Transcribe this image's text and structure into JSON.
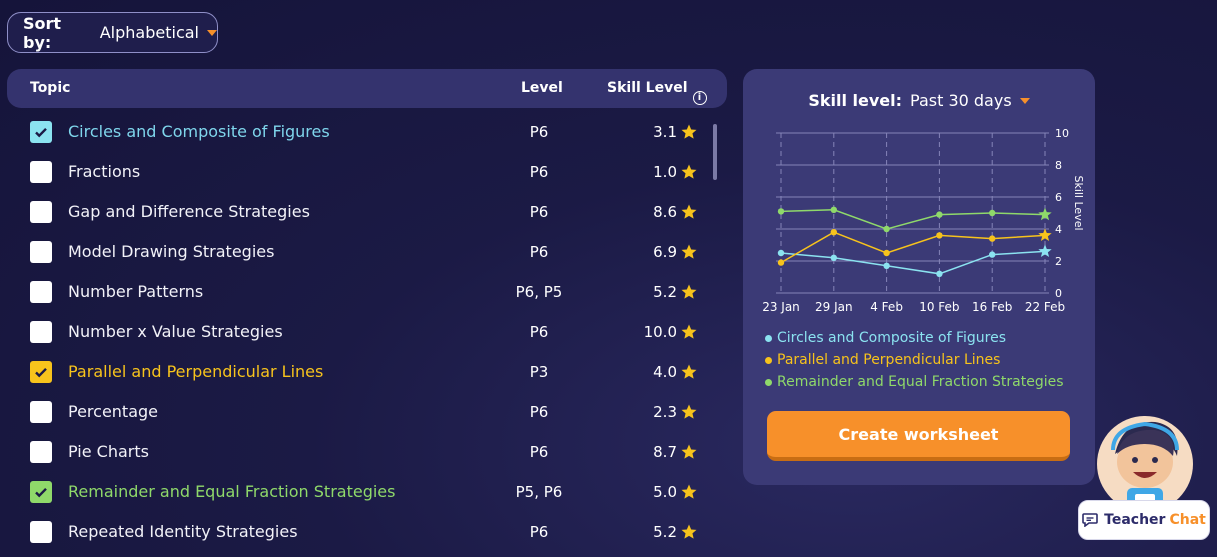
{
  "sort": {
    "label": "Sort by:",
    "value": "Alphabetical"
  },
  "table": {
    "headers": {
      "topic": "Topic",
      "level": "Level",
      "skill": "Skill Level"
    },
    "rows": [
      {
        "topic": "Circles and Composite of Figures",
        "level": "P6",
        "skill": "3.1",
        "checked": true,
        "checkColor": "#8be3f0",
        "textColor": "#7fd6ec"
      },
      {
        "topic": "Fractions",
        "level": "P6",
        "skill": "1.0",
        "checked": false
      },
      {
        "topic": "Gap and Difference Strategies",
        "level": "P6",
        "skill": "8.6",
        "checked": false
      },
      {
        "topic": "Model Drawing Strategies",
        "level": "P6",
        "skill": "6.9",
        "checked": false
      },
      {
        "topic": "Number Patterns",
        "level": "P6, P5",
        "skill": "5.2",
        "checked": false
      },
      {
        "topic": "Number x Value Strategies",
        "level": "P6",
        "skill": "10.0",
        "checked": false
      },
      {
        "topic": "Parallel and Perpendicular Lines",
        "level": "P3",
        "skill": "4.0",
        "checked": true,
        "checkColor": "#f7c31c",
        "textColor": "#f7c31c"
      },
      {
        "topic": "Percentage",
        "level": "P6",
        "skill": "2.3",
        "checked": false
      },
      {
        "topic": "Pie Charts",
        "level": "P6",
        "skill": "8.7",
        "checked": false
      },
      {
        "topic": "Remainder and Equal Fraction Strategies",
        "level": "P5, P6",
        "skill": "5.0",
        "checked": true,
        "checkColor": "#8fd96a",
        "textColor": "#8fd96a"
      },
      {
        "topic": "Repeated Identity Strategies",
        "level": "P6",
        "skill": "5.2",
        "checked": false
      }
    ]
  },
  "panel": {
    "title": "Skill level:",
    "period": "Past 30 days",
    "create_button": "Create worksheet"
  },
  "chat": {
    "label": "Teacher",
    "accent": "Chat"
  },
  "chart_data": {
    "type": "line",
    "categories": [
      "23 Jan",
      "29 Jan",
      "4 Feb",
      "10 Feb",
      "16 Feb",
      "22 Feb"
    ],
    "ylabel": "Skill Level",
    "ylim": [
      0,
      10
    ],
    "yticks": [
      0,
      2,
      4,
      6,
      8,
      10
    ],
    "grid": true,
    "legend": "bottom",
    "series": [
      {
        "name": "Circles and Composite of Figures",
        "color": "#8be3f0",
        "values": [
          2.5,
          2.2,
          1.7,
          1.2,
          2.4,
          2.6
        ]
      },
      {
        "name": "Parallel and Perpendicular Lines",
        "color": "#f7c31c",
        "values": [
          1.9,
          3.8,
          2.5,
          3.6,
          3.4,
          3.6
        ]
      },
      {
        "name": "Remainder and Equal Fraction Strategies",
        "color": "#8fd96a",
        "values": [
          5.1,
          5.2,
          4.0,
          4.9,
          5.0,
          4.9
        ]
      }
    ]
  }
}
